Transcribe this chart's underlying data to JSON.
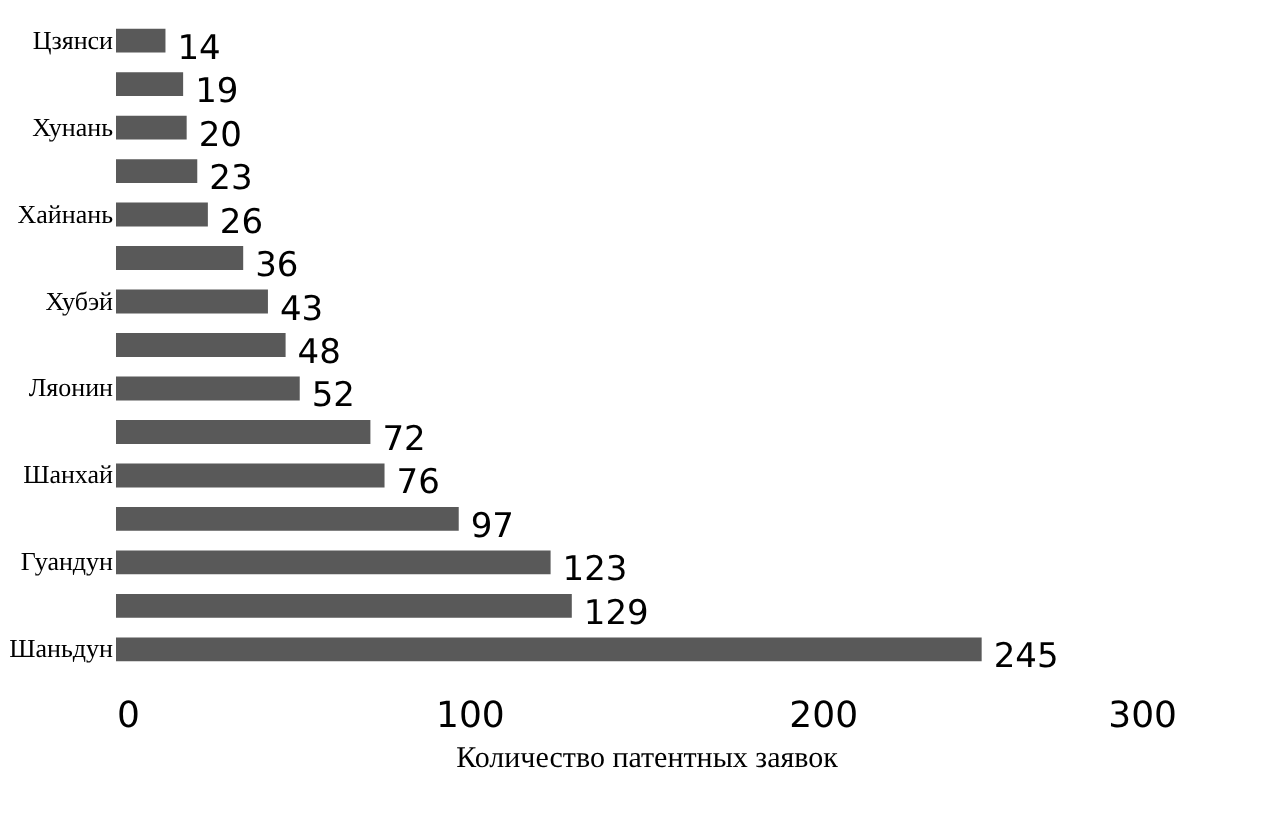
{
  "chart_data": {
    "type": "bar",
    "orientation": "horizontal",
    "xlabel": "Количество патентных заявок",
    "categories": [
      "Цзянси",
      null,
      "Хунань",
      null,
      "Хайнань",
      null,
      "Хубэй",
      null,
      "Ляонин",
      null,
      "Шанхай",
      null,
      "Гуандун",
      null,
      "Шаньдун"
    ],
    "values": [
      14,
      19,
      20,
      23,
      26,
      36,
      43,
      48,
      52,
      72,
      76,
      97,
      123,
      129,
      245
    ],
    "color": "#595959",
    "xlim": [
      0,
      300
    ],
    "xticks": [
      0,
      100,
      200,
      300
    ],
    "data_labels": true,
    "grid": false
  }
}
